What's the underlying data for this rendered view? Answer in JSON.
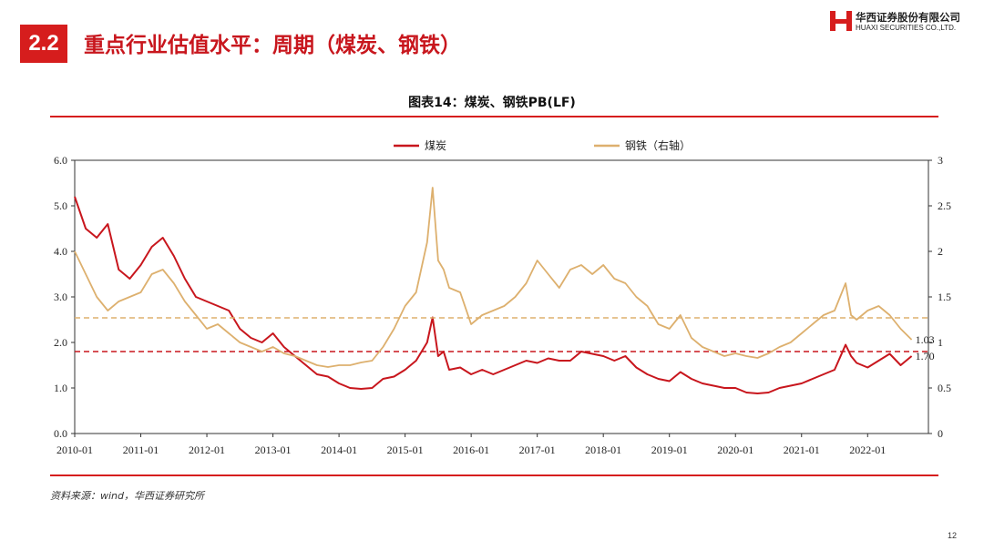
{
  "header": {
    "section_number": "2.2",
    "title": "重点行业估值水平：周期（煤炭、钢铁）"
  },
  "logo": {
    "name_cn": "华西证券股份有限公司",
    "name_en": "HUAXI SECURITIES CO.,LTD."
  },
  "footer": {
    "source": "资料来源：wind，华西证券研究所",
    "page_number": "12"
  },
  "colors": {
    "coal": "#c8161d",
    "steel": "#ddb06e",
    "rule": "#d61d1d"
  },
  "chart_data": {
    "type": "line",
    "title": "图表14：煤炭、钢铁PB(LF)",
    "x_ticks": [
      "2010-01",
      "2011-01",
      "2012-01",
      "2013-01",
      "2014-01",
      "2015-01",
      "2016-01",
      "2017-01",
      "2018-01",
      "2019-01",
      "2020-01",
      "2021-01",
      "2022-01"
    ],
    "y_left": {
      "min": 0,
      "max": 6,
      "ticks": [
        "0.0",
        "1.0",
        "2.0",
        "3.0",
        "4.0",
        "5.0",
        "6.0"
      ]
    },
    "y_right": {
      "min": 0,
      "max": 3,
      "ticks": [
        "0",
        "0.5",
        "1",
        "1.5",
        "2",
        "2.5",
        "3"
      ]
    },
    "legend_position": "top",
    "series": [
      {
        "name": "煤炭",
        "axis": "left",
        "reference_value": 1.8,
        "last_label": "1.70",
        "points": [
          [
            "2010-01",
            5.2
          ],
          [
            "2010-03",
            4.5
          ],
          [
            "2010-05",
            4.3
          ],
          [
            "2010-07",
            4.6
          ],
          [
            "2010-09",
            3.6
          ],
          [
            "2010-11",
            3.4
          ],
          [
            "2011-01",
            3.7
          ],
          [
            "2011-03",
            4.1
          ],
          [
            "2011-05",
            4.3
          ],
          [
            "2011-07",
            3.9
          ],
          [
            "2011-09",
            3.4
          ],
          [
            "2011-11",
            3.0
          ],
          [
            "2012-01",
            2.9
          ],
          [
            "2012-03",
            2.8
          ],
          [
            "2012-05",
            2.7
          ],
          [
            "2012-07",
            2.3
          ],
          [
            "2012-09",
            2.1
          ],
          [
            "2012-11",
            2.0
          ],
          [
            "2013-01",
            2.2
          ],
          [
            "2013-03",
            1.9
          ],
          [
            "2013-05",
            1.7
          ],
          [
            "2013-07",
            1.5
          ],
          [
            "2013-09",
            1.3
          ],
          [
            "2013-11",
            1.25
          ],
          [
            "2014-01",
            1.1
          ],
          [
            "2014-03",
            1.0
          ],
          [
            "2014-05",
            0.98
          ],
          [
            "2014-07",
            1.0
          ],
          [
            "2014-09",
            1.2
          ],
          [
            "2014-11",
            1.25
          ],
          [
            "2015-01",
            1.4
          ],
          [
            "2015-03",
            1.6
          ],
          [
            "2015-05",
            2.0
          ],
          [
            "2015-06",
            2.55
          ],
          [
            "2015-07",
            1.7
          ],
          [
            "2015-08",
            1.8
          ],
          [
            "2015-09",
            1.4
          ],
          [
            "2015-11",
            1.45
          ],
          [
            "2016-01",
            1.3
          ],
          [
            "2016-03",
            1.4
          ],
          [
            "2016-05",
            1.3
          ],
          [
            "2016-07",
            1.4
          ],
          [
            "2016-09",
            1.5
          ],
          [
            "2016-11",
            1.6
          ],
          [
            "2017-01",
            1.55
          ],
          [
            "2017-03",
            1.65
          ],
          [
            "2017-05",
            1.6
          ],
          [
            "2017-07",
            1.6
          ],
          [
            "2017-09",
            1.8
          ],
          [
            "2017-11",
            1.75
          ],
          [
            "2018-01",
            1.7
          ],
          [
            "2018-03",
            1.6
          ],
          [
            "2018-05",
            1.7
          ],
          [
            "2018-07",
            1.45
          ],
          [
            "2018-09",
            1.3
          ],
          [
            "2018-11",
            1.2
          ],
          [
            "2019-01",
            1.15
          ],
          [
            "2019-03",
            1.35
          ],
          [
            "2019-05",
            1.2
          ],
          [
            "2019-07",
            1.1
          ],
          [
            "2019-09",
            1.05
          ],
          [
            "2019-11",
            1.0
          ],
          [
            "2020-01",
            1.0
          ],
          [
            "2020-03",
            0.9
          ],
          [
            "2020-05",
            0.88
          ],
          [
            "2020-07",
            0.9
          ],
          [
            "2020-09",
            1.0
          ],
          [
            "2020-11",
            1.05
          ],
          [
            "2021-01",
            1.1
          ],
          [
            "2021-03",
            1.2
          ],
          [
            "2021-05",
            1.3
          ],
          [
            "2021-07",
            1.4
          ],
          [
            "2021-09",
            1.95
          ],
          [
            "2021-10",
            1.7
          ],
          [
            "2021-11",
            1.55
          ],
          [
            "2022-01",
            1.45
          ],
          [
            "2022-03",
            1.6
          ],
          [
            "2022-05",
            1.75
          ],
          [
            "2022-07",
            1.5
          ],
          [
            "2022-09",
            1.7
          ]
        ]
      },
      {
        "name": "钢铁（右轴）",
        "axis": "right",
        "reference_value": 1.27,
        "last_label": "1.03",
        "points": [
          [
            "2010-01",
            2.0
          ],
          [
            "2010-03",
            1.75
          ],
          [
            "2010-05",
            1.5
          ],
          [
            "2010-07",
            1.35
          ],
          [
            "2010-09",
            1.45
          ],
          [
            "2010-11",
            1.5
          ],
          [
            "2011-01",
            1.55
          ],
          [
            "2011-03",
            1.75
          ],
          [
            "2011-05",
            1.8
          ],
          [
            "2011-07",
            1.65
          ],
          [
            "2011-09",
            1.45
          ],
          [
            "2011-11",
            1.3
          ],
          [
            "2012-01",
            1.15
          ],
          [
            "2012-03",
            1.2
          ],
          [
            "2012-05",
            1.1
          ],
          [
            "2012-07",
            1.0
          ],
          [
            "2012-09",
            0.95
          ],
          [
            "2012-11",
            0.9
          ],
          [
            "2013-01",
            0.95
          ],
          [
            "2013-03",
            0.88
          ],
          [
            "2013-05",
            0.85
          ],
          [
            "2013-07",
            0.8
          ],
          [
            "2013-09",
            0.75
          ],
          [
            "2013-11",
            0.73
          ],
          [
            "2014-01",
            0.75
          ],
          [
            "2014-03",
            0.75
          ],
          [
            "2014-05",
            0.78
          ],
          [
            "2014-07",
            0.8
          ],
          [
            "2014-09",
            0.95
          ],
          [
            "2014-11",
            1.15
          ],
          [
            "2015-01",
            1.4
          ],
          [
            "2015-03",
            1.55
          ],
          [
            "2015-05",
            2.1
          ],
          [
            "2015-06",
            2.7
          ],
          [
            "2015-07",
            1.9
          ],
          [
            "2015-08",
            1.8
          ],
          [
            "2015-09",
            1.6
          ],
          [
            "2015-11",
            1.55
          ],
          [
            "2016-01",
            1.2
          ],
          [
            "2016-03",
            1.3
          ],
          [
            "2016-05",
            1.35
          ],
          [
            "2016-07",
            1.4
          ],
          [
            "2016-09",
            1.5
          ],
          [
            "2016-11",
            1.65
          ],
          [
            "2017-01",
            1.9
          ],
          [
            "2017-03",
            1.75
          ],
          [
            "2017-05",
            1.6
          ],
          [
            "2017-07",
            1.8
          ],
          [
            "2017-09",
            1.85
          ],
          [
            "2017-11",
            1.75
          ],
          [
            "2018-01",
            1.85
          ],
          [
            "2018-03",
            1.7
          ],
          [
            "2018-05",
            1.65
          ],
          [
            "2018-07",
            1.5
          ],
          [
            "2018-09",
            1.4
          ],
          [
            "2018-11",
            1.2
          ],
          [
            "2019-01",
            1.15
          ],
          [
            "2019-03",
            1.3
          ],
          [
            "2019-05",
            1.05
          ],
          [
            "2019-07",
            0.95
          ],
          [
            "2019-09",
            0.9
          ],
          [
            "2019-11",
            0.85
          ],
          [
            "2020-01",
            0.88
          ],
          [
            "2020-03",
            0.85
          ],
          [
            "2020-05",
            0.83
          ],
          [
            "2020-07",
            0.88
          ],
          [
            "2020-09",
            0.95
          ],
          [
            "2020-11",
            1.0
          ],
          [
            "2021-01",
            1.1
          ],
          [
            "2021-03",
            1.2
          ],
          [
            "2021-05",
            1.3
          ],
          [
            "2021-07",
            1.35
          ],
          [
            "2021-09",
            1.65
          ],
          [
            "2021-10",
            1.3
          ],
          [
            "2021-11",
            1.25
          ],
          [
            "2022-01",
            1.35
          ],
          [
            "2022-03",
            1.4
          ],
          [
            "2022-05",
            1.3
          ],
          [
            "2022-07",
            1.15
          ],
          [
            "2022-09",
            1.03
          ]
        ]
      }
    ]
  }
}
